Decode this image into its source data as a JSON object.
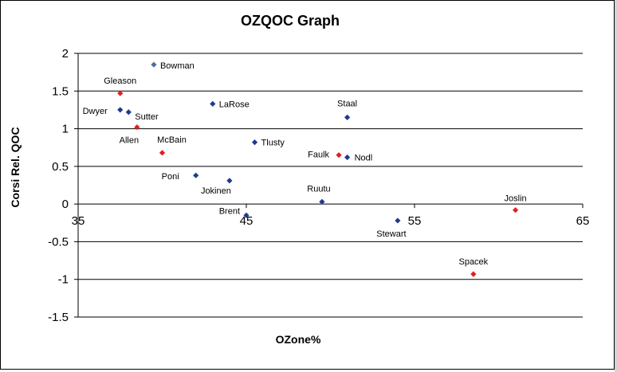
{
  "chart_data": {
    "type": "scatter",
    "title": "OZQOC Graph",
    "xlabel": "OZone%",
    "ylabel": "Corsi Rel. QOC",
    "xlim": [
      35,
      65
    ],
    "ylim": [
      -1.5,
      2
    ],
    "x_ticks": [
      "35",
      "45",
      "55",
      "65"
    ],
    "y_ticks": [
      "2",
      "1.5",
      "1",
      "0.5",
      "0",
      "-0.5",
      "-1",
      "-1.5"
    ],
    "grid": "horizontal",
    "colors": {
      "blue": "#1f3a93",
      "steel": "#4a6fa5",
      "red": "#e02020"
    },
    "points": [
      {
        "label": "Bowman",
        "x": 39.5,
        "y": 1.85,
        "color": "steel"
      },
      {
        "label": "Gleason",
        "x": 37.5,
        "y": 1.47,
        "color": "red"
      },
      {
        "label": "Dwyer",
        "x": 37.5,
        "y": 1.25,
        "color": "blue"
      },
      {
        "label": "Sutter",
        "x": 38.0,
        "y": 1.22,
        "color": "blue"
      },
      {
        "label": "Allen",
        "x": 38.5,
        "y": 1.02,
        "color": "red"
      },
      {
        "label": "LaRose",
        "x": 43.0,
        "y": 1.33,
        "color": "blue"
      },
      {
        "label": "Staal",
        "x": 51.0,
        "y": 1.15,
        "color": "blue"
      },
      {
        "label": "McBain",
        "x": 40.0,
        "y": 0.68,
        "color": "red"
      },
      {
        "label": "Tlusty",
        "x": 45.5,
        "y": 0.82,
        "color": "blue"
      },
      {
        "label": "Faulk",
        "x": 50.5,
        "y": 0.65,
        "color": "red"
      },
      {
        "label": "Nodl",
        "x": 51.0,
        "y": 0.62,
        "color": "blue"
      },
      {
        "label": "Poni",
        "x": 42.0,
        "y": 0.38,
        "color": "blue"
      },
      {
        "label": "Jokinen",
        "x": 44.0,
        "y": 0.31,
        "color": "blue"
      },
      {
        "label": "Ruutu",
        "x": 49.5,
        "y": 0.03,
        "color": "blue"
      },
      {
        "label": "Brent",
        "x": 45.0,
        "y": -0.15,
        "color": "blue"
      },
      {
        "label": "Stewart",
        "x": 54.0,
        "y": -0.22,
        "color": "blue"
      },
      {
        "label": "Joslin",
        "x": 61.0,
        "y": -0.08,
        "color": "red"
      },
      {
        "label": "Spacek",
        "x": 58.5,
        "y": -0.93,
        "color": "red"
      }
    ]
  }
}
